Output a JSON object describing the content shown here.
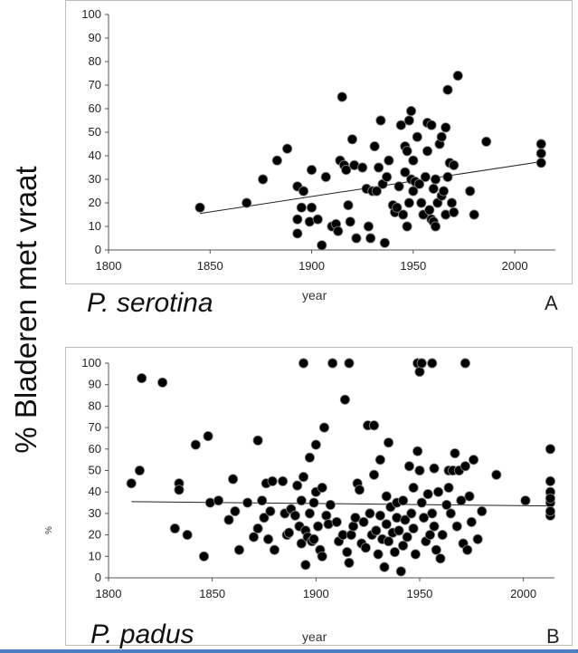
{
  "figure": {
    "ylabel_main": "% Bladeren met vraat",
    "panel_a": {
      "species": "P. serotina",
      "letter": "A",
      "xtitle": "year"
    },
    "panel_b": {
      "species": "P. padus",
      "letter": "B",
      "xtitle": "year",
      "ytitle": "%"
    }
  },
  "chart_data": [
    {
      "type": "scatter",
      "title": "",
      "xlabel": "year",
      "ylabel": "",
      "xlim": [
        1800,
        2020
      ],
      "ylim": [
        0,
        100
      ],
      "xticks": [
        1800,
        1850,
        1900,
        1950,
        2000
      ],
      "yticks": [
        0,
        10,
        20,
        30,
        40,
        50,
        60,
        70,
        80,
        90,
        100
      ],
      "trendline": {
        "x": [
          1845,
          2013
        ],
        "y": [
          15.5,
          37.5
        ]
      },
      "points": [
        [
          1845,
          18
        ],
        [
          1868,
          20
        ],
        [
          1876,
          30
        ],
        [
          1883,
          38
        ],
        [
          1888,
          43
        ],
        [
          1893,
          27
        ],
        [
          1893,
          13
        ],
        [
          1893,
          7
        ],
        [
          1895,
          18
        ],
        [
          1896,
          25
        ],
        [
          1899,
          12
        ],
        [
          1900,
          34
        ],
        [
          1900,
          18
        ],
        [
          1903,
          13
        ],
        [
          1905,
          2
        ],
        [
          1907,
          31
        ],
        [
          1910,
          10
        ],
        [
          1912,
          11
        ],
        [
          1913,
          8
        ],
        [
          1914,
          38
        ],
        [
          1915,
          65
        ],
        [
          1916,
          36
        ],
        [
          1917,
          34
        ],
        [
          1918,
          19
        ],
        [
          1919,
          12
        ],
        [
          1920,
          47
        ],
        [
          1921,
          36
        ],
        [
          1922,
          5
        ],
        [
          1925,
          35
        ],
        [
          1927,
          26
        ],
        [
          1928,
          10
        ],
        [
          1929,
          5
        ],
        [
          1930,
          25
        ],
        [
          1931,
          44
        ],
        [
          1932,
          25
        ],
        [
          1933,
          35
        ],
        [
          1934,
          55
        ],
        [
          1935,
          28
        ],
        [
          1936,
          3
        ],
        [
          1937,
          31
        ],
        [
          1938,
          38
        ],
        [
          1940,
          19
        ],
        [
          1941,
          16
        ],
        [
          1942,
          18
        ],
        [
          1943,
          27
        ],
        [
          1944,
          53
        ],
        [
          1945,
          15
        ],
        [
          1946,
          33
        ],
        [
          1946,
          44
        ],
        [
          1947,
          42
        ],
        [
          1947,
          10
        ],
        [
          1948,
          20
        ],
        [
          1948,
          55
        ],
        [
          1949,
          59
        ],
        [
          1949,
          30
        ],
        [
          1950,
          38
        ],
        [
          1950,
          25
        ],
        [
          1951,
          29
        ],
        [
          1952,
          48
        ],
        [
          1953,
          28
        ],
        [
          1954,
          20
        ],
        [
          1955,
          15
        ],
        [
          1956,
          31
        ],
        [
          1957,
          42
        ],
        [
          1957,
          54
        ],
        [
          1958,
          17
        ],
        [
          1959,
          53
        ],
        [
          1959,
          13
        ],
        [
          1960,
          12
        ],
        [
          1960,
          26
        ],
        [
          1961,
          10
        ],
        [
          1961,
          30
        ],
        [
          1962,
          20
        ],
        [
          1963,
          45
        ],
        [
          1964,
          23
        ],
        [
          1964,
          48
        ],
        [
          1965,
          25
        ],
        [
          1966,
          15
        ],
        [
          1966,
          52
        ],
        [
          1967,
          31
        ],
        [
          1967,
          68
        ],
        [
          1968,
          37
        ],
        [
          1969,
          20
        ],
        [
          1970,
          36
        ],
        [
          1970,
          16
        ],
        [
          1972,
          74
        ],
        [
          1978,
          25
        ],
        [
          1980,
          15
        ],
        [
          1986,
          46
        ],
        [
          2013,
          45
        ],
        [
          2013,
          41
        ],
        [
          2013,
          37
        ]
      ]
    },
    {
      "type": "scatter",
      "title": "",
      "xlabel": "year",
      "ylabel": "%",
      "xlim": [
        1800,
        2015
      ],
      "ylim": [
        0,
        100
      ],
      "xticks": [
        1800,
        1850,
        1900,
        1950,
        2000
      ],
      "yticks": [
        0,
        10,
        20,
        30,
        40,
        50,
        60,
        70,
        80,
        90,
        100
      ],
      "trendline": {
        "x": [
          1811,
          2013
        ],
        "y": [
          35.5,
          33.5
        ]
      },
      "points": [
        [
          1811,
          44
        ],
        [
          1815,
          50
        ],
        [
          1816,
          93
        ],
        [
          1826,
          91
        ],
        [
          1832,
          23
        ],
        [
          1834,
          44
        ],
        [
          1834,
          41
        ],
        [
          1838,
          20
        ],
        [
          1842,
          62
        ],
        [
          1846,
          10
        ],
        [
          1848,
          66
        ],
        [
          1849,
          35
        ],
        [
          1853,
          36
        ],
        [
          1858,
          27
        ],
        [
          1860,
          46
        ],
        [
          1861,
          31
        ],
        [
          1863,
          13
        ],
        [
          1867,
          35
        ],
        [
          1870,
          19
        ],
        [
          1872,
          64
        ],
        [
          1872,
          23
        ],
        [
          1874,
          36
        ],
        [
          1875,
          28
        ],
        [
          1876,
          44
        ],
        [
          1877,
          18
        ],
        [
          1878,
          31
        ],
        [
          1879,
          45
        ],
        [
          1880,
          13
        ],
        [
          1884,
          45
        ],
        [
          1885,
          30
        ],
        [
          1886,
          20
        ],
        [
          1887,
          21
        ],
        [
          1888,
          32
        ],
        [
          1890,
          29
        ],
        [
          1891,
          43
        ],
        [
          1892,
          24
        ],
        [
          1893,
          16
        ],
        [
          1893,
          36
        ],
        [
          1894,
          100
        ],
        [
          1894,
          47
        ],
        [
          1895,
          6
        ],
        [
          1895,
          22
        ],
        [
          1896,
          19
        ],
        [
          1897,
          30
        ],
        [
          1897,
          56
        ],
        [
          1898,
          17
        ],
        [
          1899,
          35
        ],
        [
          1899,
          18
        ],
        [
          1900,
          40
        ],
        [
          1900,
          62
        ],
        [
          1901,
          24
        ],
        [
          1902,
          13
        ],
        [
          1903,
          42
        ],
        [
          1903,
          10
        ],
        [
          1904,
          70
        ],
        [
          1905,
          29
        ],
        [
          1906,
          25
        ],
        [
          1907,
          34
        ],
        [
          1908,
          100
        ],
        [
          1910,
          26
        ],
        [
          1911,
          17
        ],
        [
          1913,
          20
        ],
        [
          1914,
          83
        ],
        [
          1915,
          12
        ],
        [
          1916,
          100
        ],
        [
          1916,
          7
        ],
        [
          1917,
          20
        ],
        [
          1918,
          24
        ],
        [
          1919,
          28
        ],
        [
          1920,
          44
        ],
        [
          1921,
          41
        ],
        [
          1922,
          16
        ],
        [
          1923,
          26
        ],
        [
          1924,
          14
        ],
        [
          1925,
          71
        ],
        [
          1926,
          30
        ],
        [
          1927,
          20
        ],
        [
          1928,
          71
        ],
        [
          1928,
          48
        ],
        [
          1929,
          22
        ],
        [
          1930,
          11
        ],
        [
          1931,
          55
        ],
        [
          1931,
          29
        ],
        [
          1932,
          18
        ],
        [
          1933,
          5
        ],
        [
          1934,
          38
        ],
        [
          1934,
          25
        ],
        [
          1935,
          63
        ],
        [
          1935,
          17
        ],
        [
          1936,
          33
        ],
        [
          1937,
          21
        ],
        [
          1938,
          12
        ],
        [
          1939,
          35
        ],
        [
          1939,
          28
        ],
        [
          1940,
          22
        ],
        [
          1941,
          3
        ],
        [
          1942,
          36
        ],
        [
          1942,
          15
        ],
        [
          1943,
          27
        ],
        [
          1944,
          19
        ],
        [
          1945,
          52
        ],
        [
          1946,
          30
        ],
        [
          1947,
          42
        ],
        [
          1947,
          23
        ],
        [
          1948,
          11
        ],
        [
          1949,
          100
        ],
        [
          1949,
          59
        ],
        [
          1950,
          96
        ],
        [
          1950,
          50
        ],
        [
          1951,
          100
        ],
        [
          1951,
          35
        ],
        [
          1952,
          28
        ],
        [
          1953,
          17
        ],
        [
          1954,
          39
        ],
        [
          1955,
          20
        ],
        [
          1956,
          30
        ],
        [
          1956,
          100
        ],
        [
          1957,
          51
        ],
        [
          1957,
          24
        ],
        [
          1958,
          13
        ],
        [
          1959,
          40
        ],
        [
          1960,
          9
        ],
        [
          1961,
          20
        ],
        [
          1963,
          34
        ],
        [
          1964,
          50
        ],
        [
          1964,
          42
        ],
        [
          1965,
          30
        ],
        [
          1966,
          50
        ],
        [
          1967,
          58
        ],
        [
          1968,
          24
        ],
        [
          1969,
          50
        ],
        [
          1970,
          36
        ],
        [
          1971,
          16
        ],
        [
          1972,
          100
        ],
        [
          1972,
          52
        ],
        [
          1973,
          13
        ],
        [
          1974,
          38
        ],
        [
          1975,
          26
        ],
        [
          1976,
          55
        ],
        [
          1978,
          18
        ],
        [
          1980,
          31
        ],
        [
          1987,
          48
        ],
        [
          2001,
          36
        ],
        [
          2013,
          60
        ],
        [
          2013,
          45
        ],
        [
          2013,
          40
        ],
        [
          2013,
          35
        ],
        [
          2013,
          29
        ],
        [
          2013,
          37
        ],
        [
          2013,
          31
        ]
      ]
    }
  ]
}
